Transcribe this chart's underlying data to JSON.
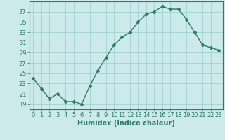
{
  "x": [
    0,
    1,
    2,
    3,
    4,
    5,
    6,
    7,
    8,
    9,
    10,
    11,
    12,
    13,
    14,
    15,
    16,
    17,
    18,
    19,
    20,
    21,
    22,
    23
  ],
  "y": [
    24,
    22,
    20,
    21,
    19.5,
    19.5,
    19,
    22.5,
    25.5,
    28,
    30.5,
    32,
    33,
    35,
    36.5,
    37,
    38,
    37.5,
    37.5,
    35.5,
    33,
    30.5,
    30,
    29.5
  ],
  "line_color": "#2d7a6a",
  "marker": "D",
  "marker_size": 2.5,
  "bg_color": "#cceaea",
  "grid_color": "#99cccc",
  "xlabel": "Humidex (Indice chaleur)",
  "xlim": [
    -0.5,
    23.5
  ],
  "ylim": [
    18,
    39
  ],
  "yticks": [
    19,
    21,
    23,
    25,
    27,
    29,
    31,
    33,
    35,
    37
  ],
  "xticks": [
    0,
    1,
    2,
    3,
    4,
    5,
    6,
    7,
    8,
    9,
    10,
    11,
    12,
    13,
    14,
    15,
    16,
    17,
    18,
    19,
    20,
    21,
    22,
    23
  ],
  "tick_label_fontsize": 6,
  "xlabel_fontsize": 7,
  "linewidth": 1.0
}
